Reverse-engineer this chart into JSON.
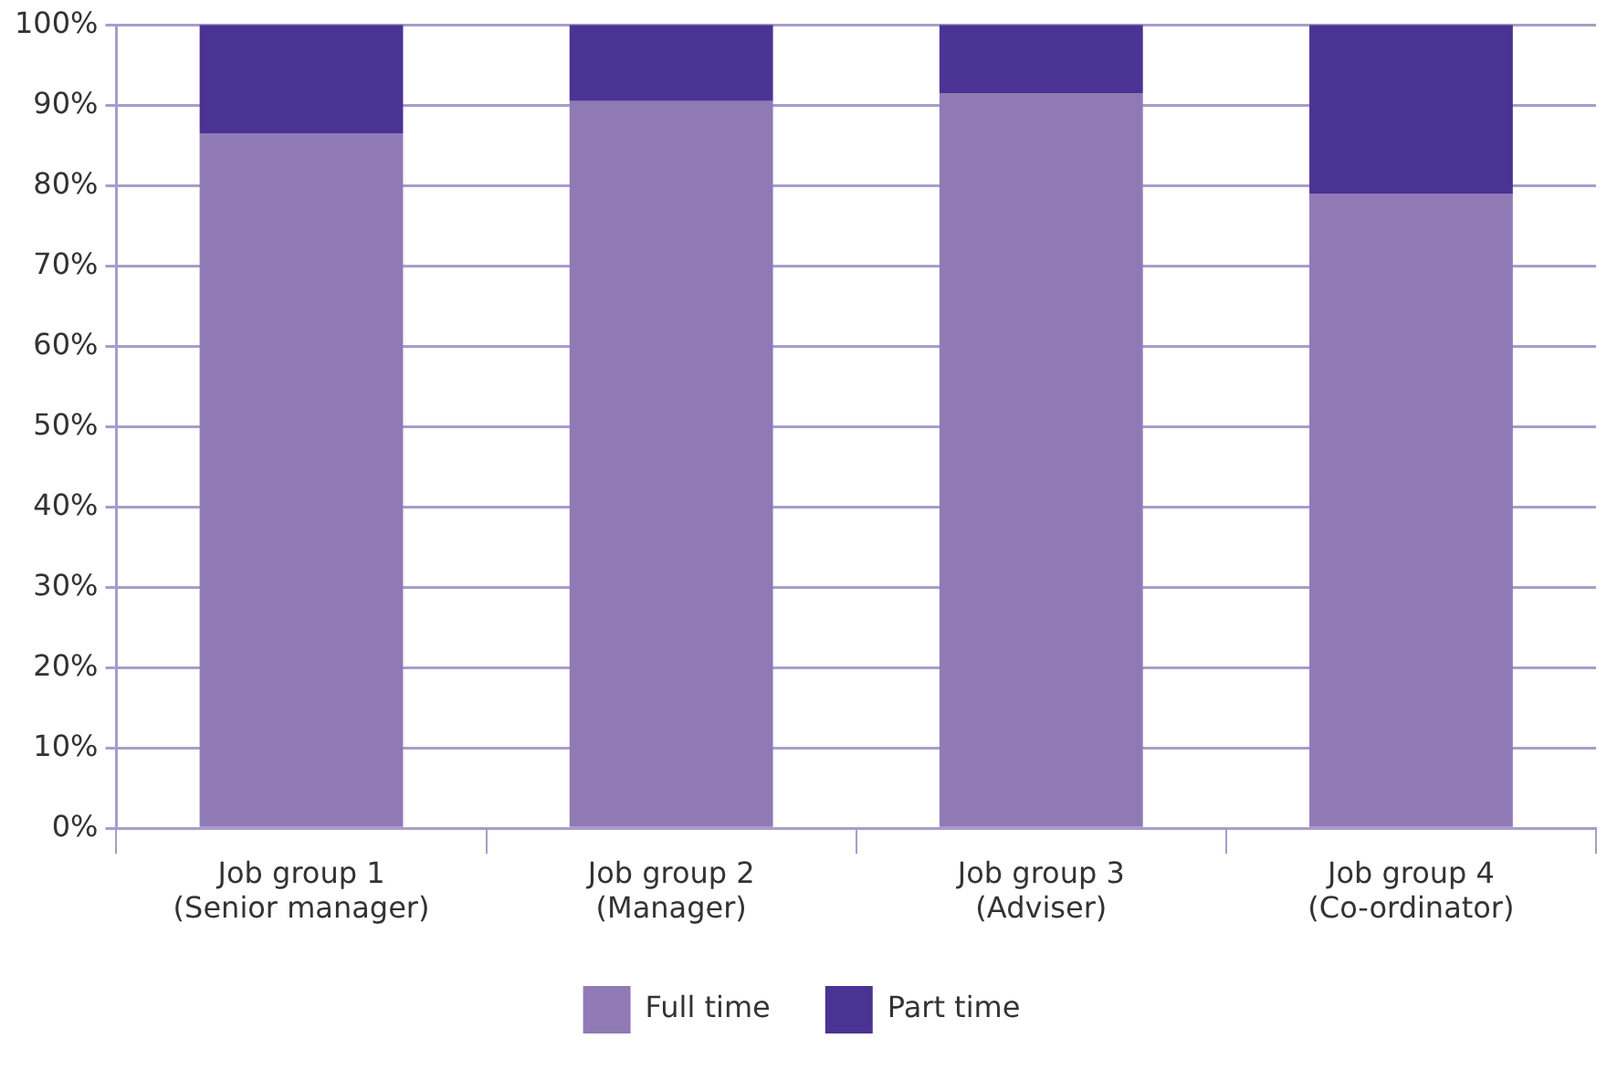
{
  "chart_data": {
    "type": "bar",
    "stacked": true,
    "categories": [
      "Job group 1\n(Senior manager)",
      "Job group 2\n(Manager)",
      "Job group 3\n(Adviser)",
      "Job group 4\n(Co-ordinator)"
    ],
    "series": [
      {
        "name": "Full time",
        "color": "#907ab6",
        "values": [
          86.5,
          90.5,
          91.5,
          79
        ]
      },
      {
        "name": "Part time",
        "color": "#4b3393",
        "values": [
          13.5,
          9.5,
          8.5,
          21
        ]
      }
    ],
    "ylim": [
      0,
      100
    ],
    "yticks": [
      {
        "value": 0,
        "label": "0%"
      },
      {
        "value": 10,
        "label": "10%"
      },
      {
        "value": 20,
        "label": "20%"
      },
      {
        "value": 30,
        "label": "30%"
      },
      {
        "value": 40,
        "label": "40%"
      },
      {
        "value": 50,
        "label": "50%"
      },
      {
        "value": 60,
        "label": "60%"
      },
      {
        "value": 70,
        "label": "70%"
      },
      {
        "value": 80,
        "label": "80%"
      },
      {
        "value": 90,
        "label": "90%"
      },
      {
        "value": 100,
        "label": "100%"
      }
    ],
    "grid": "y",
    "legend": "bottom"
  }
}
